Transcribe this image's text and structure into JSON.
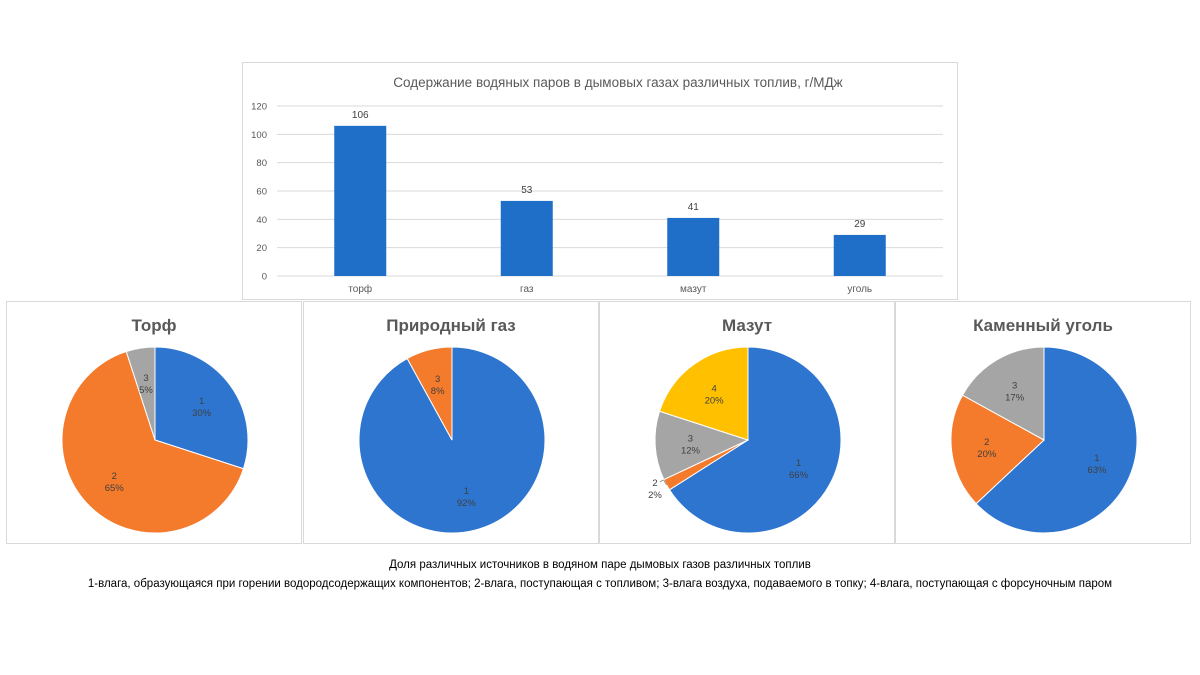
{
  "chart_data": [
    {
      "type": "bar",
      "title": "Содержание водяных паров в дымовых газах различных топлив, г/МДж",
      "categories": [
        "торф",
        "газ",
        "мазут",
        "уголь"
      ],
      "values": [
        106,
        53,
        41,
        29
      ],
      "data_labels": [
        "106",
        "53",
        "41",
        "29"
      ],
      "ylim": [
        0,
        120
      ],
      "yticks": [
        0,
        20,
        40,
        60,
        80,
        100,
        120
      ],
      "grid": true,
      "color": "#1f6fc8"
    },
    {
      "type": "pie",
      "title": "Торф",
      "slices": [
        {
          "label": "1",
          "pct_label": "30%",
          "value": 30,
          "color": "#2e75d0"
        },
        {
          "label": "2",
          "pct_label": "65%",
          "value": 65,
          "color": "#f47a2c"
        },
        {
          "label": "3",
          "pct_label": "5%",
          "value": 5,
          "color": "#a5a5a5"
        }
      ]
    },
    {
      "type": "pie",
      "title": "Природный газ",
      "slices": [
        {
          "label": "1",
          "pct_label": "92%",
          "value": 92,
          "color": "#2e75d0"
        },
        {
          "label": "3",
          "pct_label": "8%",
          "value": 8,
          "color": "#f47a2c"
        }
      ]
    },
    {
      "type": "pie",
      "title": "Мазут",
      "slices": [
        {
          "label": "1",
          "pct_label": "66%",
          "value": 66,
          "color": "#2e75d0"
        },
        {
          "label": "2",
          "pct_label": "2%",
          "value": 2,
          "color": "#f47a2c"
        },
        {
          "label": "3",
          "pct_label": "12%",
          "value": 12,
          "color": "#a5a5a5"
        },
        {
          "label": "4",
          "pct_label": "20%",
          "value": 20,
          "color": "#ffc000"
        }
      ]
    },
    {
      "type": "pie",
      "title": "Каменный уголь",
      "slices": [
        {
          "label": "1",
          "pct_label": "63%",
          "value": 63,
          "color": "#2e75d0"
        },
        {
          "label": "2",
          "pct_label": "20%",
          "value": 20,
          "color": "#f47a2c"
        },
        {
          "label": "3",
          "pct_label": "17%",
          "value": 17,
          "color": "#a5a5a5"
        }
      ]
    }
  ],
  "caption": {
    "line1": "Доля различных источников в водяном паре дымовых газов различных топлив",
    "line2": "1-влага, образующаяся при горении водородсодержащих компонентов; 2-влага, поступающая с топливом; 3-влага воздуха, подаваемого в топку; 4-влага, поступающая с форсуночным паром"
  }
}
